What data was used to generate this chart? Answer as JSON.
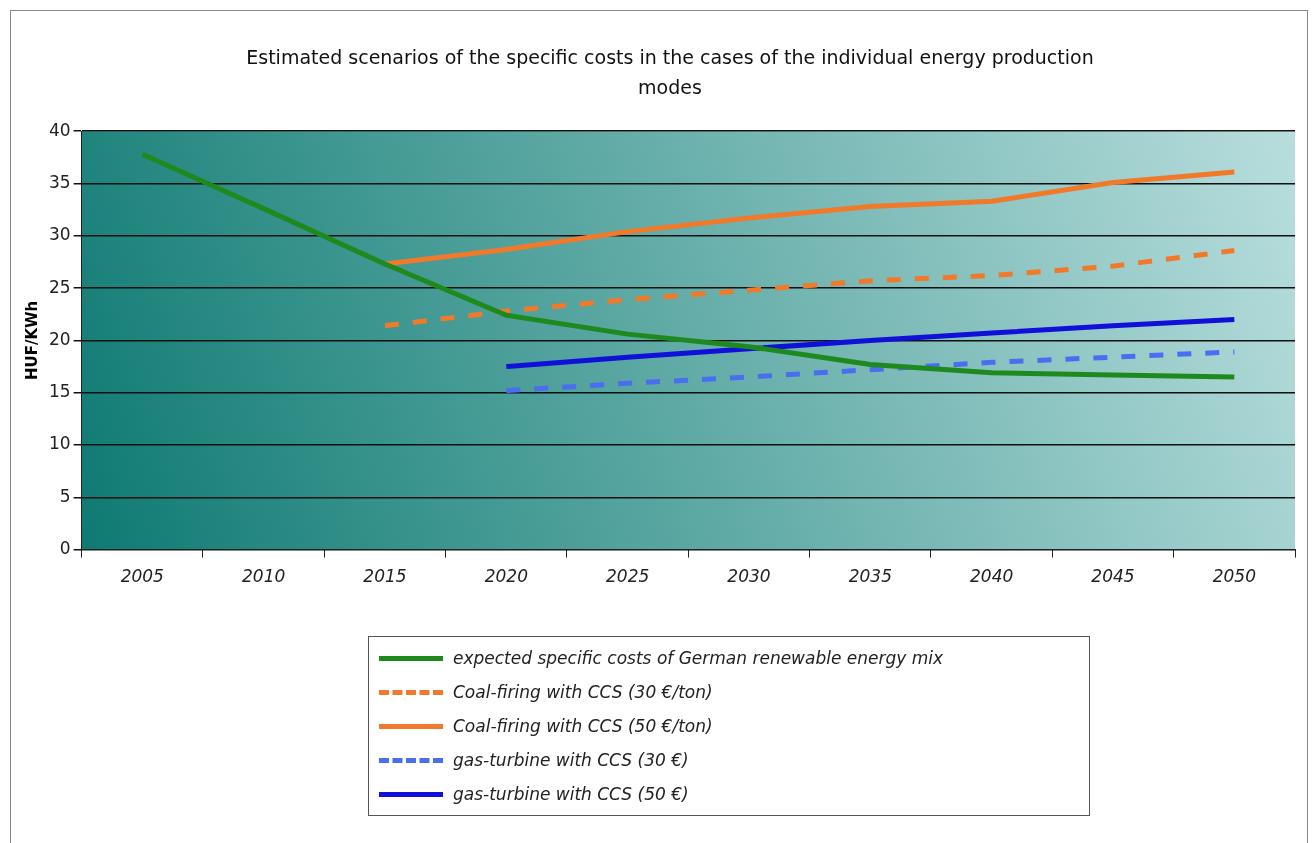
{
  "chart_data": {
    "type": "line",
    "title": "Estimated scenarios of the specific costs in the cases of the individual energy production modes",
    "ylabel": "HUF/KWh",
    "categories": [
      "2005",
      "2010",
      "2015",
      "2020",
      "2025",
      "2030",
      "2035",
      "2040",
      "2045",
      "2050"
    ],
    "series": [
      {
        "name": "expected specific costs of German renewable energy mix",
        "color": "#1e8a1e",
        "line_style": "solid",
        "values": [
          37.8,
          32.6,
          27.3,
          22.4,
          20.6,
          19.4,
          17.7,
          16.9,
          16.7,
          16.5
        ]
      },
      {
        "name": "Coal-firing with CCS (30 €/ton)",
        "color": "#f07a2a",
        "line_style": "dashed",
        "values": [
          null,
          null,
          21.4,
          22.8,
          23.9,
          24.8,
          25.7,
          26.2,
          27.1,
          28.6
        ]
      },
      {
        "name": "Coal-firing with CCS (50 €/ton)",
        "color": "#f07a2a",
        "line_style": "solid",
        "values": [
          null,
          null,
          27.3,
          28.7,
          30.4,
          31.7,
          32.8,
          33.3,
          35.1,
          36.1
        ]
      },
      {
        "name": "gas-turbine with CCS (30 €)",
        "color": "#4a6ef0",
        "line_style": "dashed",
        "values": [
          null,
          null,
          null,
          15.2,
          15.9,
          16.5,
          17.2,
          17.9,
          18.4,
          18.9
        ]
      },
      {
        "name": "gas-turbine with CCS (50 €)",
        "color": "#1010d8",
        "line_style": "solid",
        "values": [
          null,
          null,
          null,
          17.5,
          18.4,
          19.2,
          20.0,
          20.7,
          21.4,
          22.0
        ]
      }
    ],
    "ylim": [
      0,
      40
    ],
    "yticks": [
      0,
      5,
      10,
      15,
      20,
      25,
      30,
      35,
      40
    ],
    "grid": "y",
    "legend": "bottom",
    "marker": "none"
  }
}
